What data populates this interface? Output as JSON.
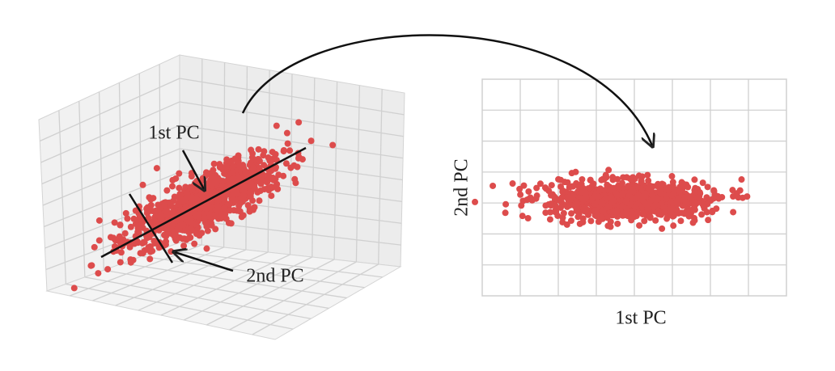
{
  "left_panel": {
    "first_pc_label": "1st PC",
    "second_pc_label": "2nd PC"
  },
  "right_panel": {
    "x_label": "1st PC",
    "y_label": "2nd PC"
  }
}
